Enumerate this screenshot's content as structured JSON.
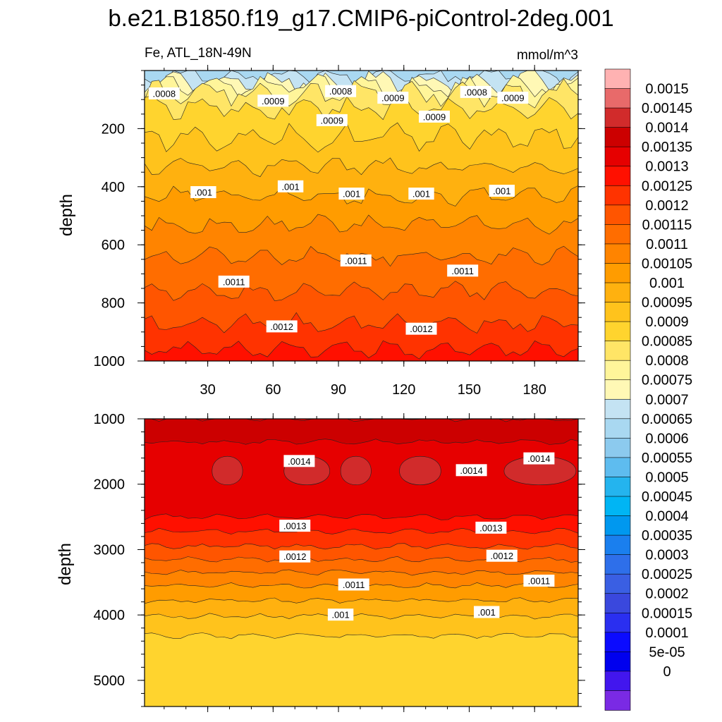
{
  "title": "b.e21.B1850.f19_g17.CMIP6-piControl-2deg.001",
  "chart_data": {
    "type": "contour",
    "variable": "Fe",
    "region": "ATL_18N-49N",
    "left_label": "Fe, ATL_18N-49N",
    "units": "mmol/m^3",
    "x_ticks": [
      "30",
      "60",
      "90",
      "120",
      "150",
      "180"
    ],
    "x_tick_values": [
      30,
      60,
      90,
      120,
      150,
      180
    ],
    "xlim": [
      1,
      200
    ],
    "panels": [
      {
        "name": "upper",
        "ylabel": "depth",
        "ylim": [
          0,
          1000
        ],
        "y_ticks": [
          "200",
          "400",
          "600",
          "800",
          "1000"
        ],
        "y_tick_values": [
          200,
          400,
          600,
          800,
          1000
        ],
        "band_values": [
          0.00065,
          0.0007,
          0.00075,
          0.0008,
          0.00085,
          0.0009,
          0.00095,
          0.001,
          0.00105,
          0.0011,
          0.00115,
          0.0012,
          0.00125,
          0.0013
        ],
        "band_depths": [
          18,
          40,
          58,
          78,
          130,
          230,
          330,
          430,
          530,
          640,
          760,
          870,
          960
        ],
        "contour_labels": [
          {
            "text": ".0008",
            "x": 10,
            "y": 80
          },
          {
            "text": ".0008",
            "x": 91,
            "y": 72
          },
          {
            "text": ".0008",
            "x": 153,
            "y": 75
          },
          {
            "text": ".0009",
            "x": 60,
            "y": 105
          },
          {
            "text": ".0009",
            "x": 115,
            "y": 95
          },
          {
            "text": ".0009",
            "x": 170,
            "y": 95
          },
          {
            "text": ".0009",
            "x": 87,
            "y": 172
          },
          {
            "text": ".0009",
            "x": 134,
            "y": 160
          },
          {
            "text": ".001",
            "x": 28,
            "y": 420
          },
          {
            "text": ".001",
            "x": 68,
            "y": 400
          },
          {
            "text": ".001",
            "x": 96,
            "y": 425
          },
          {
            "text": ".001",
            "x": 128,
            "y": 425
          },
          {
            "text": ".001",
            "x": 165,
            "y": 415
          },
          {
            "text": ".0011",
            "x": 42,
            "y": 728
          },
          {
            "text": ".0011",
            "x": 98,
            "y": 655
          },
          {
            "text": ".0011",
            "x": 147,
            "y": 690
          },
          {
            "text": ".0012",
            "x": 64,
            "y": 882
          },
          {
            "text": ".0012",
            "x": 128,
            "y": 890
          }
        ]
      },
      {
        "name": "lower",
        "ylabel": "depth",
        "ylim": [
          1000,
          5400
        ],
        "y_ticks": [
          "1000",
          "2000",
          "3000",
          "4000",
          "5000"
        ],
        "y_tick_values": [
          1000,
          2000,
          3000,
          4000,
          5000
        ],
        "band_values": [
          0.00135,
          0.0014,
          0.00135,
          0.0013,
          0.00125,
          0.0012,
          0.00115,
          0.0011,
          0.00105,
          0.001,
          0.00095,
          0.0009
        ],
        "band_depths": [
          1000,
          1350,
          2500,
          2720,
          2950,
          3150,
          3350,
          3550,
          3780,
          4020,
          4320
        ],
        "patches_0_00145_depth": 1800,
        "contour_labels": [
          {
            "text": ".0014",
            "x": 72,
            "y": 1650
          },
          {
            "text": ".0014",
            "x": 151,
            "y": 1790
          },
          {
            "text": ".0014",
            "x": 182,
            "y": 1610
          },
          {
            "text": ".0013",
            "x": 70,
            "y": 2640
          },
          {
            "text": ".0013",
            "x": 160,
            "y": 2670
          },
          {
            "text": ".0012",
            "x": 70,
            "y": 3110
          },
          {
            "text": ".0012",
            "x": 165,
            "y": 3100
          },
          {
            "text": ".0011",
            "x": 97,
            "y": 3540
          },
          {
            "text": ".0011",
            "x": 182,
            "y": 3480
          },
          {
            "text": ".001",
            "x": 91,
            "y": 4000
          },
          {
            "text": ".001",
            "x": 158,
            "y": 3960
          }
        ]
      }
    ],
    "colorbar": {
      "labels": [
        "0.0015",
        "0.00145",
        "0.0014",
        "0.00135",
        "0.0013",
        "0.00125",
        "0.0012",
        "0.00115",
        "0.0011",
        "0.00105",
        "0.001",
        "0.00095",
        "0.0009",
        "0.00085",
        "0.0008",
        "0.00075",
        "0.0007",
        "0.00065",
        "0.0006",
        "0.00055",
        "0.0005",
        "0.00045",
        "0.0004",
        "0.00035",
        "0.0003",
        "0.00025",
        "0.0002",
        "0.00015",
        "0.0001",
        "5e-05",
        "0"
      ],
      "colors": [
        "#ffb2b2",
        "#e86a6a",
        "#d12b2b",
        "#cc0000",
        "#e60000",
        "#ff1000",
        "#ff3300",
        "#ff5500",
        "#ff6d00",
        "#ff8400",
        "#ff9c00",
        "#ffb10f",
        "#ffc31c",
        "#ffd42e",
        "#ffe566",
        "#fff59a",
        "#fff8b5",
        "#c4e3f3",
        "#a9d8f1",
        "#8ccaee",
        "#5ebcef",
        "#24b4ee",
        "#00b5f4",
        "#0098ef",
        "#1a7fee",
        "#2e6fea",
        "#3a5fe3",
        "#3a48dd",
        "#2a2ff0",
        "#0b0bff",
        "#0000ee",
        "#4216ee",
        "#7a2ae4"
      ]
    }
  }
}
